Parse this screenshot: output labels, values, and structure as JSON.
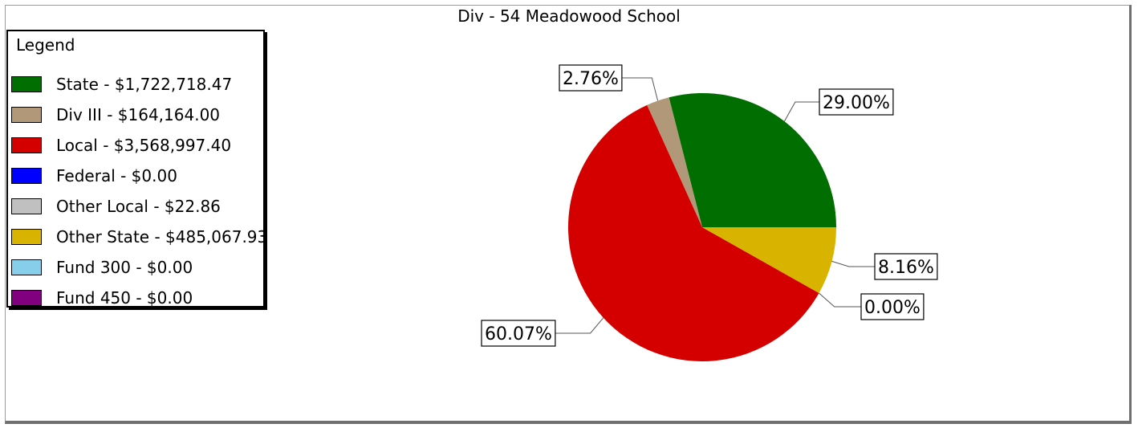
{
  "chart_data": {
    "type": "pie",
    "title": "Div - 54  Meadowood School",
    "legend_title": "Legend",
    "legend_position": "top-left",
    "series": [
      {
        "name": "State - $1,722,718.47",
        "value": 1722718.47,
        "color": "#006e00",
        "percent_label": "29.00%"
      },
      {
        "name": "Div III - $164,164.00",
        "value": 164164.0,
        "color": "#b09878",
        "percent_label": "2.76%"
      },
      {
        "name": "Local - $3,568,997.40",
        "value": 3568997.4,
        "color": "#d40000",
        "percent_label": "60.07%"
      },
      {
        "name": "Federal - $0.00",
        "value": 0.0,
        "color": "#0000ff",
        "percent_label": ""
      },
      {
        "name": "Other Local - $22.86",
        "value": 22.86,
        "color": "#c0c0c0",
        "percent_label": "0.00%"
      },
      {
        "name": "Other State - $485,067.93",
        "value": 485067.93,
        "color": "#d8b400",
        "percent_label": "8.16%"
      },
      {
        "name": "Fund 300 - $0.00",
        "value": 0.0,
        "color": "#87ceeb",
        "percent_label": ""
      },
      {
        "name": "Fund 450 - $0.00",
        "value": 0.0,
        "color": "#800080",
        "percent_label": ""
      }
    ]
  }
}
